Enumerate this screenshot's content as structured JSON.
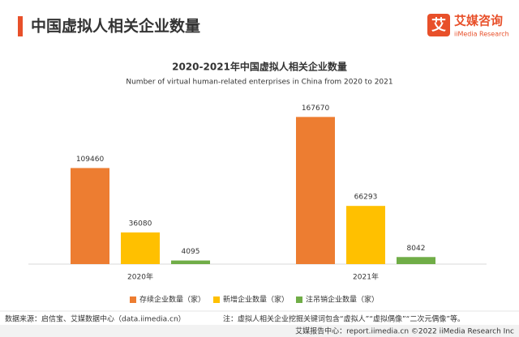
{
  "header": {
    "title": "中国虚拟人相关企业数量"
  },
  "logo": {
    "mark": "艾",
    "name": "艾媒咨询",
    "sub": "iiMedia Research"
  },
  "chart_data": {
    "type": "bar",
    "title": "2020-2021年中国虚拟人相关企业数量",
    "subtitle": "Number of virtual human-related enterprises in China from 2020 to 2021",
    "categories": [
      "2020年",
      "2021年"
    ],
    "series": [
      {
        "name": "存续企业数量（家）",
        "color": "#ed7d31",
        "values": [
          109460,
          167670
        ]
      },
      {
        "name": "新增企业数量（家）",
        "color": "#ffc000",
        "values": [
          36080,
          66293
        ]
      },
      {
        "name": "注吊销企业数量（家）",
        "color": "#70ad47",
        "values": [
          4095,
          8042
        ]
      }
    ],
    "ylim": [
      0,
      180000
    ],
    "legend": "bottom"
  },
  "footer": {
    "source": "数据来源：启信宝、艾媒数据中心（data.iimedia.cn）",
    "note": "注：虚拟人相关企业挖掘关键词包含“虚拟人”“虚拟偶像”“二次元偶像”等。",
    "copyright": "艾媒报告中心：report.iimedia.cn ©2022 iiMedia Research Inc"
  }
}
